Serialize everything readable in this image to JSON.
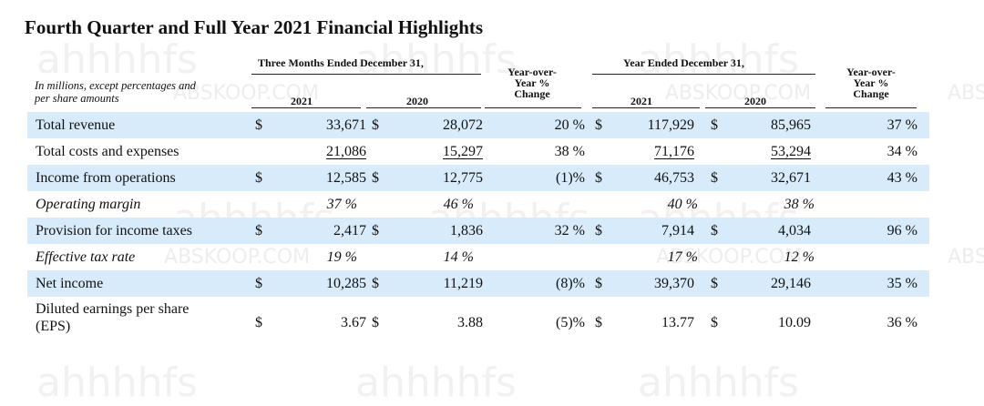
{
  "title": "Fourth Quarter and Full Year 2021 Financial Highlights",
  "note": [
    "In millions, except percentages and",
    "per share amounts"
  ],
  "headers": {
    "three_months": "Three Months Ended December 31,",
    "year_ended": "Year Ended December 31,",
    "y2021": "2021",
    "y2020": "2020",
    "yoy": [
      "Year-over-",
      "Year %",
      "Change"
    ]
  },
  "watermark": {
    "text": "ahhhhfs",
    "small": "ABSKOOP.COM",
    "edge": "ABS"
  },
  "rows": [
    {
      "label": "Total revenue",
      "q21_dol": "$",
      "q21": "33,671",
      "q20_dol": "$",
      "q20": "28,072",
      "q_chg": "20 %",
      "q_chg_dol": "$",
      "y21": "117,929",
      "y20_dol": "$",
      "y20": "85,965",
      "y_chg": "37 %"
    },
    {
      "label": "Total costs and expenses",
      "q21_dol": "",
      "q21": "21,086",
      "q20_dol": "",
      "q20": "15,297",
      "q_chg": "38 %",
      "q_chg_dol": "",
      "y21": "71,176",
      "y20_dol": "",
      "y20": "53,294",
      "y_chg": "34 %"
    },
    {
      "label": "Income from operations",
      "q21_dol": "$",
      "q21": "12,585",
      "q20_dol": "$",
      "q20": "12,775",
      "q_chg": "(1)%",
      "q_chg_dol": "$",
      "y21": "46,753",
      "y20_dol": "$",
      "y20": "32,671",
      "y_chg": "43 %"
    },
    {
      "label": "Operating margin",
      "q21_dol": "",
      "q21": "37 %",
      "q20_dol": "",
      "q20": "46 %",
      "q_chg": "",
      "q_chg_dol": "",
      "y21": "40 %",
      "y20_dol": "",
      "y20": "38 %",
      "y_chg": ""
    },
    {
      "label": "Provision for income taxes",
      "q21_dol": "$",
      "q21": "2,417",
      "q20_dol": "$",
      "q20": "1,836",
      "q_chg": "32 %",
      "q_chg_dol": "$",
      "y21": "7,914",
      "y20_dol": "$",
      "y20": "4,034",
      "y_chg": "96 %"
    },
    {
      "label": "Effective tax rate",
      "q21_dol": "",
      "q21": "19 %",
      "q20_dol": "",
      "q20": "14 %",
      "q_chg": "",
      "q_chg_dol": "",
      "y21": "17 %",
      "y20_dol": "",
      "y20": "12 %",
      "y_chg": ""
    },
    {
      "label": "Net income",
      "q21_dol": "$",
      "q21": "10,285",
      "q20_dol": "$",
      "q20": "11,219",
      "q_chg": "(8)%",
      "q_chg_dol": "$",
      "y21": "39,370",
      "y20_dol": "$",
      "y20": "29,146",
      "y_chg": "35 %"
    },
    {
      "label": "Diluted earnings per share (EPS)",
      "label_lines": [
        "Diluted earnings per share",
        "(EPS)"
      ],
      "q21_dol": "$",
      "q21": "3.67",
      "q20_dol": "$",
      "q20": "3.88",
      "q_chg": "(5)%",
      "q_chg_dol": "$",
      "y21": "13.77",
      "y20_dol": "$",
      "y20": "10.09",
      "y_chg": "36 %"
    }
  ]
}
